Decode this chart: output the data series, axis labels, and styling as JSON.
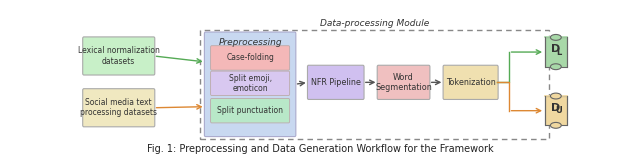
{
  "title": "Data-processing Module",
  "caption": "Fig. 1: Preprocessing and Data Generation Workflow for the Framework",
  "bg_color": "#ffffff",
  "preprocessing_box_color": "#c8d8f0",
  "preprocessing_title": "Preprocessing",
  "sub_boxes": [
    {
      "label": "Case-folding",
      "color": "#f4b8b8"
    },
    {
      "label": "Split emoji,\nemoticon",
      "color": "#d8c8f0"
    },
    {
      "label": "Split punctuation",
      "color": "#b8e8c8"
    }
  ],
  "pipeline_boxes": [
    {
      "label": "NFR Pipeline",
      "color": "#d0c0f0"
    },
    {
      "label": "Word\nSegmentation",
      "color": "#f0c0c0"
    },
    {
      "label": "Tokenization",
      "color": "#f0e0b0"
    }
  ],
  "input_boxes": [
    {
      "label": "Lexical normalization\ndatasets",
      "color": "#c8f0c8",
      "arrow_color": "#55aa55"
    },
    {
      "label": "Social media text\nprocessing datasets",
      "color": "#f0e8c0",
      "arrow_color": "#dd8833"
    }
  ],
  "output_cylinders": [
    {
      "label": "D",
      "sub": "L",
      "color": "#a8d8a8",
      "arrow_color": "#55aa55"
    },
    {
      "label": "D",
      "sub": "U",
      "color": "#f0d8a0",
      "arrow_color": "#dd8833"
    }
  ]
}
